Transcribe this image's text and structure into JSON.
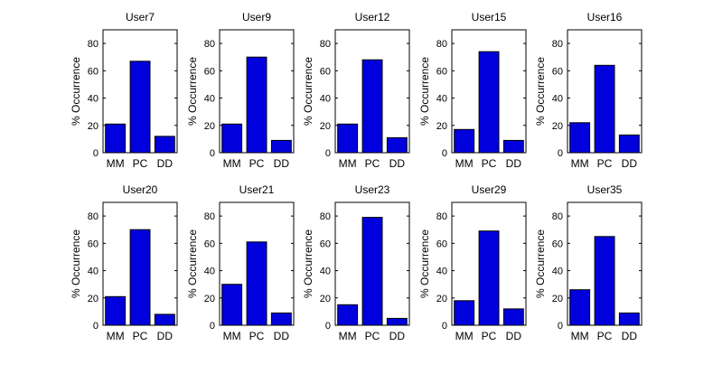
{
  "chart_data": [
    {
      "type": "bar",
      "title": "User7",
      "categories": [
        "MM",
        "PC",
        "DD"
      ],
      "values": [
        21,
        67,
        12
      ],
      "ylabel": "% Occurrence",
      "ylim": [
        0,
        90
      ],
      "yticks": [
        0,
        20,
        40,
        60,
        80
      ]
    },
    {
      "type": "bar",
      "title": "User9",
      "categories": [
        "MM",
        "PC",
        "DD"
      ],
      "values": [
        21,
        70,
        9
      ],
      "ylabel": "% Occurrence",
      "ylim": [
        0,
        90
      ],
      "yticks": [
        0,
        20,
        40,
        60,
        80
      ]
    },
    {
      "type": "bar",
      "title": "User12",
      "categories": [
        "MM",
        "PC",
        "DD"
      ],
      "values": [
        21,
        68,
        11
      ],
      "ylabel": "% Occurrence",
      "ylim": [
        0,
        90
      ],
      "yticks": [
        0,
        20,
        40,
        60,
        80
      ]
    },
    {
      "type": "bar",
      "title": "User15",
      "categories": [
        "MM",
        "PC",
        "DD"
      ],
      "values": [
        17,
        74,
        9
      ],
      "ylabel": "% Occurrence",
      "ylim": [
        0,
        90
      ],
      "yticks": [
        0,
        20,
        40,
        60,
        80
      ]
    },
    {
      "type": "bar",
      "title": "User16",
      "categories": [
        "MM",
        "PC",
        "DD"
      ],
      "values": [
        22,
        64,
        13
      ],
      "ylabel": "% Occurrence",
      "ylim": [
        0,
        90
      ],
      "yticks": [
        0,
        20,
        40,
        60,
        80
      ]
    },
    {
      "type": "bar",
      "title": "User20",
      "categories": [
        "MM",
        "PC",
        "DD"
      ],
      "values": [
        21,
        70,
        8
      ],
      "ylabel": "% Occurrence",
      "ylim": [
        0,
        90
      ],
      "yticks": [
        0,
        20,
        40,
        60,
        80
      ]
    },
    {
      "type": "bar",
      "title": "User21",
      "categories": [
        "MM",
        "PC",
        "DD"
      ],
      "values": [
        30,
        61,
        9
      ],
      "ylabel": "% Occurrence",
      "ylim": [
        0,
        90
      ],
      "yticks": [
        0,
        20,
        40,
        60,
        80
      ]
    },
    {
      "type": "bar",
      "title": "User23",
      "categories": [
        "MM",
        "PC",
        "DD"
      ],
      "values": [
        15,
        79,
        5
      ],
      "ylabel": "% Occurrence",
      "ylim": [
        0,
        90
      ],
      "yticks": [
        0,
        20,
        40,
        60,
        80
      ]
    },
    {
      "type": "bar",
      "title": "User29",
      "categories": [
        "MM",
        "PC",
        "DD"
      ],
      "values": [
        18,
        69,
        12
      ],
      "ylabel": "% Occurrence",
      "ylim": [
        0,
        90
      ],
      "yticks": [
        0,
        20,
        40,
        60,
        80
      ]
    },
    {
      "type": "bar",
      "title": "User35",
      "categories": [
        "MM",
        "PC",
        "DD"
      ],
      "values": [
        26,
        65,
        9
      ],
      "ylabel": "% Occurrence",
      "ylim": [
        0,
        90
      ],
      "yticks": [
        0,
        20,
        40,
        60,
        80
      ]
    }
  ],
  "colors": {
    "bar_fill": "#0000dd",
    "bar_stroke": "#000000",
    "axis": "#000000",
    "background": "#ffffff"
  }
}
